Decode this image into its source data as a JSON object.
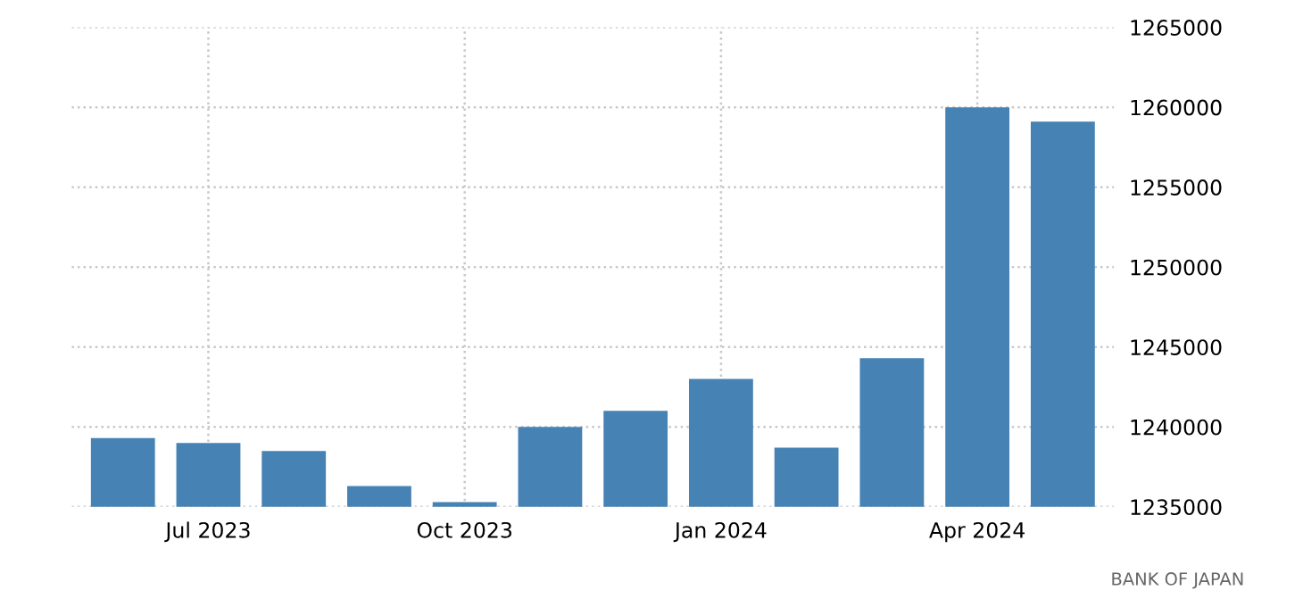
{
  "chart_data": {
    "type": "bar",
    "categories": [
      null,
      "Jul 2023",
      null,
      null,
      "Oct 2023",
      null,
      null,
      "Jan 2024",
      null,
      null,
      "Apr 2024",
      null
    ],
    "values": [
      1239300,
      1239000,
      1238500,
      1236300,
      1235300,
      1240000,
      1241000,
      1243000,
      1238700,
      1244300,
      1260000,
      1259100
    ],
    "color": "#4682b4",
    "ylim": [
      1235000,
      1265000
    ],
    "yticks": [
      1235000,
      1240000,
      1245000,
      1250000,
      1255000,
      1260000,
      1265000
    ],
    "grid": true,
    "annotations": [
      "BANK OF JAPAN"
    ]
  }
}
